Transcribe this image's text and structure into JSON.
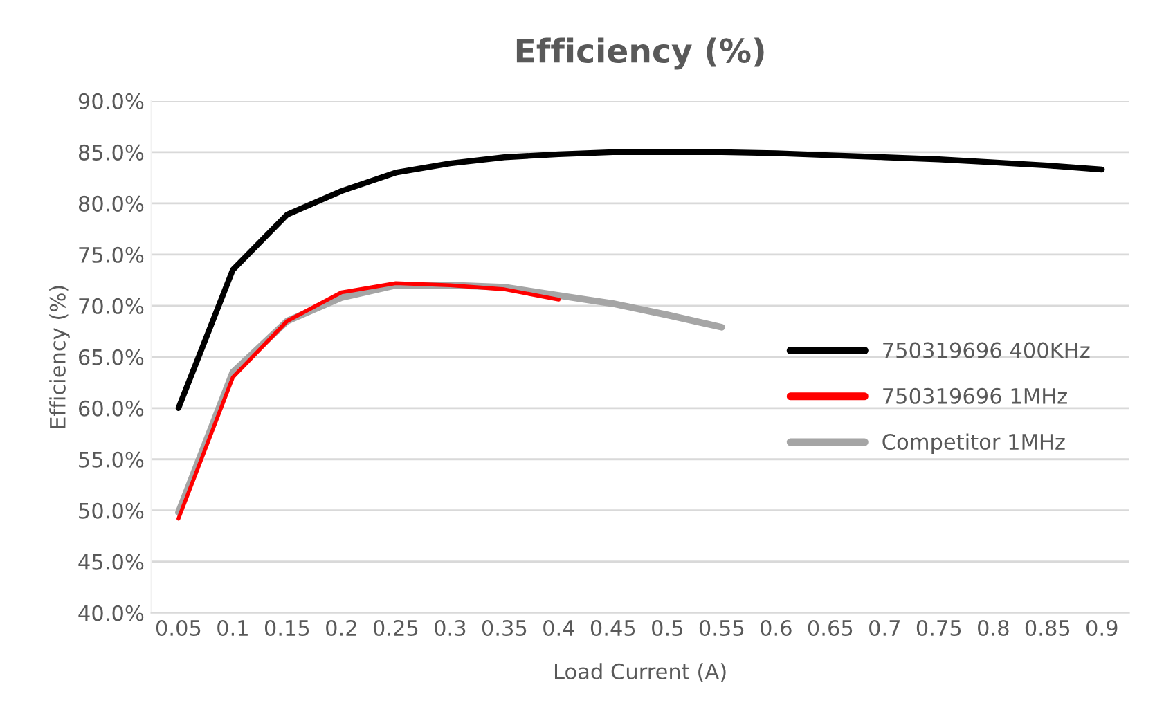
{
  "chart_data": {
    "type": "line",
    "title": "Efficiency (%)",
    "xlabel": "Load Current (A)",
    "ylabel": "Efficiency (%)",
    "categories": [
      "0.05",
      "0.1",
      "0.15",
      "0.2",
      "0.25",
      "0.3",
      "0.35",
      "0.4",
      "0.45",
      "0.5",
      "0.55",
      "0.6",
      "0.65",
      "0.7",
      "0.75",
      "0.8",
      "0.85",
      "0.9"
    ],
    "series": [
      {
        "name": "750319696 400KHz",
        "color": "#000000",
        "values": [
          60.0,
          73.5,
          78.9,
          81.2,
          83.0,
          83.9,
          84.5,
          84.8,
          85.0,
          85.0,
          85.0,
          84.9,
          84.7,
          84.5,
          84.3,
          84.0,
          83.7,
          83.3
        ]
      },
      {
        "name": "750319696 1MHz",
        "color": "#ff0000",
        "values": [
          49.2,
          63.0,
          68.5,
          71.3,
          72.2,
          72.0,
          71.6,
          70.6,
          null,
          null,
          null,
          null,
          null,
          null,
          null,
          null,
          null,
          null
        ]
      },
      {
        "name": "Competitor 1MHz",
        "color": "#a5a5a5",
        "values": [
          49.8,
          63.5,
          68.5,
          70.8,
          72.0,
          72.0,
          71.8,
          71.0,
          70.2,
          69.1,
          67.9,
          null,
          null,
          null,
          null,
          null,
          null,
          null
        ]
      }
    ],
    "ylim": [
      40,
      90
    ],
    "yticks": [
      {
        "value": 40,
        "label": "40.0%"
      },
      {
        "value": 45,
        "label": "45.0%"
      },
      {
        "value": 50,
        "label": "50.0%"
      },
      {
        "value": 55,
        "label": "55.0%"
      },
      {
        "value": 60,
        "label": "60.0%"
      },
      {
        "value": 65,
        "label": "65.0%"
      },
      {
        "value": 70,
        "label": "70.0%"
      },
      {
        "value": 75,
        "label": "75.0%"
      },
      {
        "value": 80,
        "label": "80.0%"
      },
      {
        "value": 85,
        "label": "85.0%"
      },
      {
        "value": 90,
        "label": "90.0%"
      }
    ],
    "grid": "y",
    "legend": "right",
    "marker": "none",
    "line_style": "solid"
  }
}
